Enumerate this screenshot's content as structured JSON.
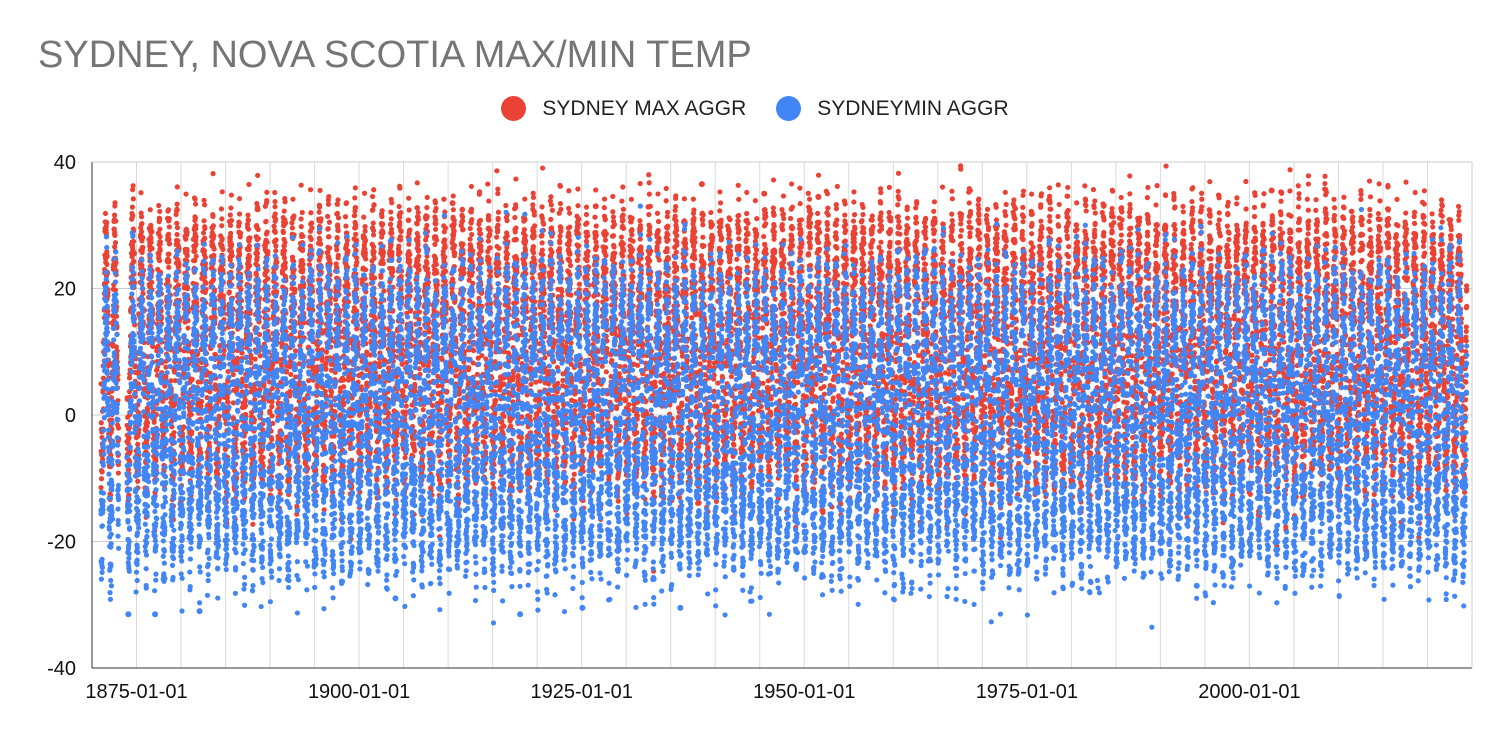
{
  "chart_data": {
    "type": "scatter",
    "title": "SYDNEY, NOVA SCOTIA MAX/MIN TEMP",
    "xlabel": "",
    "ylabel": "",
    "x_range": [
      "1870-01-01",
      "2024-12-31"
    ],
    "ylim": [
      -40,
      40
    ],
    "y_ticks": [
      40,
      20,
      0,
      -20,
      -40
    ],
    "x_ticks": [
      "1875-01-01",
      "1900-01-01",
      "1925-01-01",
      "1950-01-01",
      "1975-01-01",
      "2000-01-01"
    ],
    "grid": true,
    "legend_position": "top-center",
    "series": [
      {
        "name": "SYDNEY MAX AGGR",
        "color": "#ea4335",
        "seasonal_summer_high_typical": 28,
        "seasonal_winter_low_typical": -8,
        "extremes": [
          {
            "x": "1938-07-01",
            "y": 36.5
          },
          {
            "x": "1945-07-01",
            "y": 35
          },
          {
            "x": "2002-07-01",
            "y": 35.5
          },
          {
            "x": "1951-08-01",
            "y": 34.5
          },
          {
            "x": "1977-07-01",
            "y": 34
          },
          {
            "x": "1910-07-01",
            "y": 33.5
          },
          {
            "x": "1926-08-01",
            "y": 33
          }
        ]
      },
      {
        "name": "SYDNEYMIN AGGR",
        "color": "#4285f4",
        "seasonal_summer_high_typical": 18,
        "seasonal_winter_low_typical": -20,
        "extremes": [
          {
            "x": "1874-02-01",
            "y": -31.5
          },
          {
            "x": "1877-02-01",
            "y": -31.5
          },
          {
            "x": "1918-02-01",
            "y": -31.5
          },
          {
            "x": "1882-02-01",
            "y": -31
          },
          {
            "x": "1925-02-01",
            "y": -30.5
          },
          {
            "x": "1936-02-01",
            "y": -30.5
          },
          {
            "x": "1904-02-01",
            "y": -29
          },
          {
            "x": "1994-02-01",
            "y": -27
          }
        ]
      }
    ]
  }
}
